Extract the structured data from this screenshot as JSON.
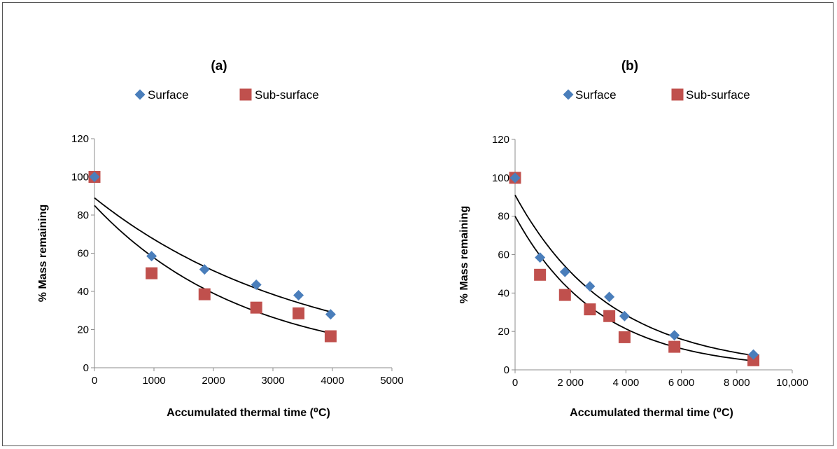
{
  "chart_data": [
    {
      "type": "scatter",
      "title": "(a)",
      "xlabel": "Accumulated thermal time (⁰C)",
      "ylabel": "% Mass remaining",
      "xlim": [
        0,
        5000
      ],
      "ylim": [
        0,
        120
      ],
      "x_ticks": [
        0,
        1000,
        2000,
        3000,
        4000,
        5000
      ],
      "x_tick_labels": [
        "0",
        "1000",
        "2000",
        "3000",
        "4000",
        "5000"
      ],
      "y_ticks": [
        0,
        20,
        40,
        60,
        80,
        100,
        120
      ],
      "y_tick_labels": [
        "0",
        "20",
        "40",
        "60",
        "80",
        "100",
        "120"
      ],
      "legend_position": "top",
      "grid": false,
      "series": [
        {
          "name": "Surface",
          "marker": "diamond",
          "color": "#4a7ebb",
          "x": [
            0,
            960,
            1850,
            2720,
            3430,
            3970
          ],
          "y": [
            100,
            58.5,
            51.5,
            43.5,
            38,
            28
          ]
        },
        {
          "name": "Sub-surface",
          "marker": "square",
          "color": "#c0504d",
          "x": [
            0,
            960,
            1850,
            2720,
            3430,
            3970
          ],
          "y": [
            100,
            49.5,
            38.5,
            31.5,
            28.5,
            16.5
          ]
        }
      ],
      "trendlines": [
        {
          "series": "Surface",
          "type": "exponential",
          "a": 89,
          "b": -0.00028
        },
        {
          "series": "Sub-surface",
          "type": "exponential",
          "a": 85,
          "b": -0.00039
        }
      ]
    },
    {
      "type": "scatter",
      "title": "(b)",
      "xlabel": "Accumulated thermal time (⁰C)",
      "ylabel": "% Mass remaining",
      "xlim": [
        0,
        10000
      ],
      "ylim": [
        0,
        120
      ],
      "x_ticks": [
        0,
        2000,
        4000,
        6000,
        8000,
        10000
      ],
      "x_tick_labels": [
        "0",
        "2 000",
        "4 000",
        "6 000",
        "8 000",
        "10,000"
      ],
      "y_ticks": [
        0,
        20,
        40,
        60,
        80,
        100,
        120
      ],
      "y_tick_labels": [
        "0",
        "20",
        "40",
        "60",
        "80",
        "100",
        "120"
      ],
      "legend_position": "top",
      "grid": false,
      "series": [
        {
          "name": "Surface",
          "marker": "diamond",
          "color": "#4a7ebb",
          "x": [
            0,
            900,
            1800,
            2700,
            3400,
            3950,
            5750,
            8600
          ],
          "y": [
            100,
            58.5,
            51,
            43.5,
            38,
            28,
            18,
            8
          ]
        },
        {
          "name": "Sub-surface",
          "marker": "square",
          "color": "#c0504d",
          "x": [
            0,
            900,
            1800,
            2700,
            3400,
            3950,
            5750,
            8600
          ],
          "y": [
            100,
            49.5,
            39,
            31.5,
            28,
            17,
            12,
            5
          ]
        }
      ],
      "trendlines": [
        {
          "series": "Surface",
          "type": "exponential",
          "a": 91,
          "b": -0.00029
        },
        {
          "series": "Sub-surface",
          "type": "exponential",
          "a": 80,
          "b": -0.00033
        }
      ]
    }
  ]
}
